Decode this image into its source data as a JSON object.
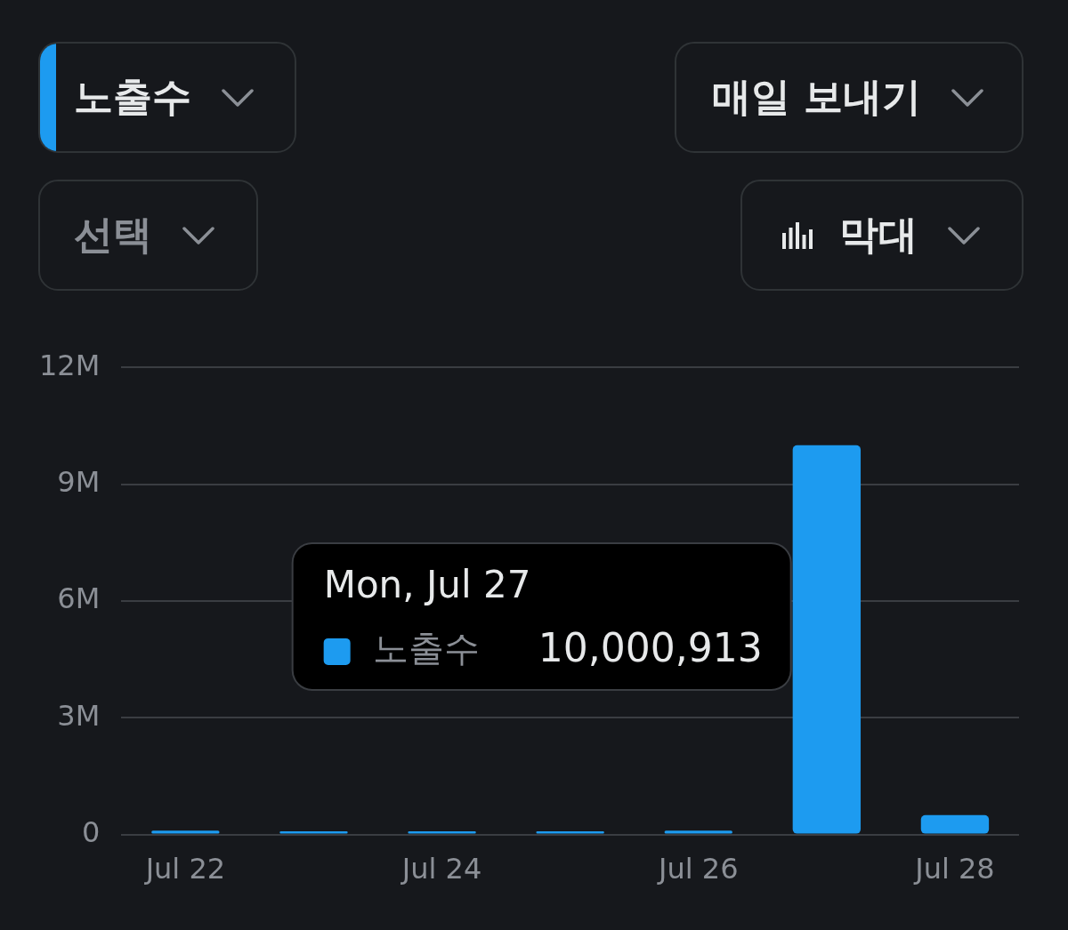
{
  "chart_data": {
    "type": "bar",
    "categories": [
      "Jul 22",
      null,
      "Jul 24",
      null,
      "Jul 26",
      null,
      "Jul 28"
    ],
    "series": [
      {
        "name": "노출수",
        "color": "#1d9bf0",
        "values": [
          100000,
          80000,
          80000,
          80000,
          100000,
          10000913,
          500000
        ]
      }
    ],
    "ylim": [
      0,
      12000000
    ],
    "yticks": [
      {
        "value": 0,
        "label": "0"
      },
      {
        "value": 3000000,
        "label": "3M"
      },
      {
        "value": 6000000,
        "label": "6M"
      },
      {
        "value": 9000000,
        "label": "9M"
      },
      {
        "value": 12000000,
        "label": "12M"
      }
    ],
    "grid": "y",
    "annotations": [
      "노출수",
      "매일 보내기",
      "선택",
      "막대",
      "Mon, Jul 27",
      "10,000,913"
    ]
  }
}
